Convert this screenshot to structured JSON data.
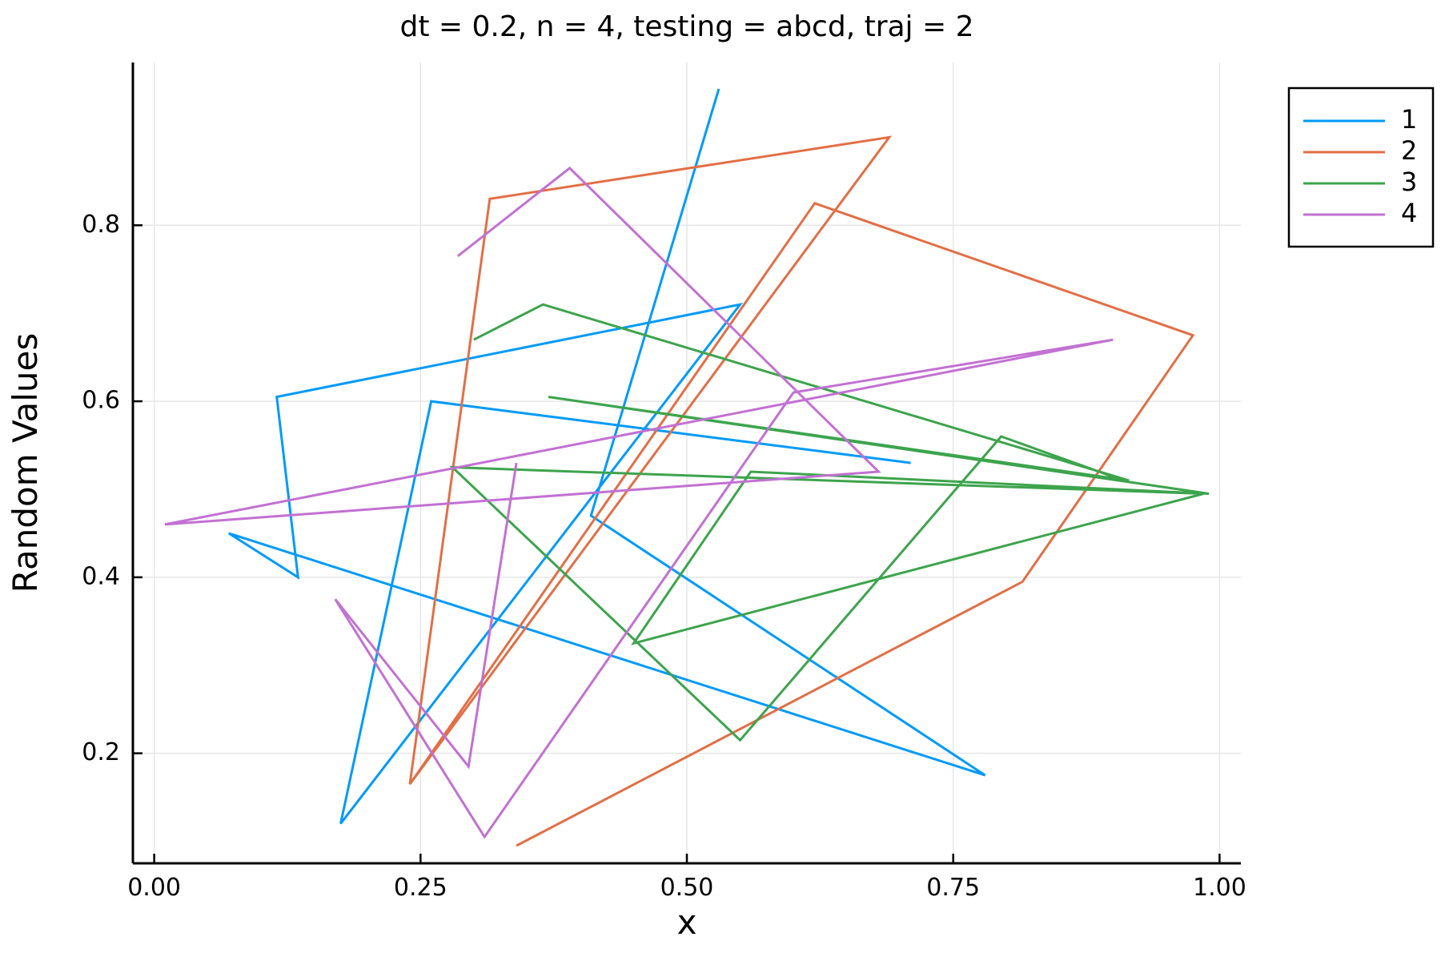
{
  "chart_data": {
    "type": "line",
    "title": "dt = 0.2, n = 4, testing = abcd, traj = 2",
    "xlabel": "x",
    "ylabel": "Random Values",
    "xlim": [
      -0.02,
      1.02
    ],
    "ylim": [
      0.075,
      0.985
    ],
    "xticks": [
      0.0,
      0.25,
      0.5,
      0.75,
      1.0
    ],
    "xtick_labels": [
      "0.00",
      "0.25",
      "0.50",
      "0.75",
      "1.00"
    ],
    "yticks": [
      0.2,
      0.4,
      0.6,
      0.8
    ],
    "ytick_labels": [
      "0.2",
      "0.4",
      "0.6",
      "0.8"
    ],
    "grid": true,
    "legend_position": "top-right",
    "series": [
      {
        "name": "1",
        "color": "#009af9",
        "points": [
          [
            0.71,
            0.53
          ],
          [
            0.26,
            0.6
          ],
          [
            0.175,
            0.12
          ],
          [
            0.55,
            0.71
          ],
          [
            0.115,
            0.605
          ],
          [
            0.135,
            0.4
          ],
          [
            0.07,
            0.45
          ],
          [
            0.78,
            0.175
          ],
          [
            0.41,
            0.47
          ],
          [
            0.53,
            0.955
          ]
        ]
      },
      {
        "name": "2",
        "color": "#e26f46",
        "points": [
          [
            0.34,
            0.095
          ],
          [
            0.815,
            0.395
          ],
          [
            0.975,
            0.675
          ],
          [
            0.62,
            0.825
          ],
          [
            0.24,
            0.165
          ],
          [
            0.69,
            0.9
          ],
          [
            0.315,
            0.83
          ],
          [
            0.24,
            0.165
          ],
          [
            0.62,
            0.825
          ],
          [
            0.975,
            0.675
          ],
          [
            0.815,
            0.395
          ],
          [
            0.34,
            0.095
          ]
        ]
      },
      {
        "name": "3",
        "color": "#3da44d",
        "points": [
          [
            0.3,
            0.67
          ],
          [
            0.365,
            0.71
          ],
          [
            0.915,
            0.51
          ],
          [
            0.37,
            0.605
          ],
          [
            0.99,
            0.495
          ],
          [
            0.56,
            0.52
          ],
          [
            0.45,
            0.325
          ],
          [
            0.985,
            0.495
          ],
          [
            0.28,
            0.525
          ],
          [
            0.55,
            0.215
          ],
          [
            0.795,
            0.56
          ],
          [
            0.91,
            0.51
          ]
        ]
      },
      {
        "name": "4",
        "color": "#c271d2",
        "points": [
          [
            0.34,
            0.53
          ],
          [
            0.295,
            0.185
          ],
          [
            0.17,
            0.375
          ],
          [
            0.31,
            0.105
          ],
          [
            0.6,
            0.61
          ],
          [
            0.9,
            0.67
          ],
          [
            0.01,
            0.46
          ],
          [
            0.68,
            0.52
          ],
          [
            0.39,
            0.865
          ],
          [
            0.285,
            0.765
          ]
        ]
      }
    ]
  }
}
